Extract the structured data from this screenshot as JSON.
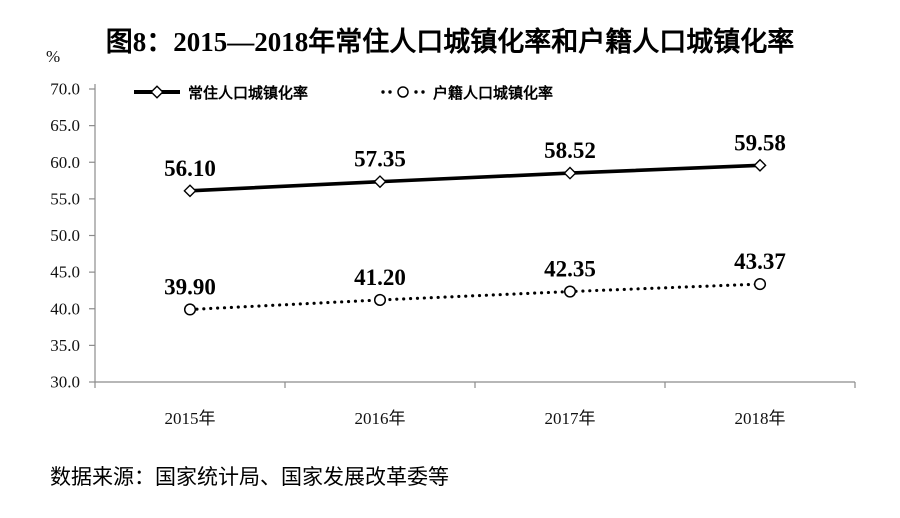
{
  "title": "图8：2015—2018年常住人口城镇化率和户籍人口城镇化率",
  "source_note": "数据来源：国家统计局、国家发展改革委等",
  "chart_data": {
    "type": "line",
    "title": "图8：2015—2018年常住人口城镇化率和户籍人口城镇化率",
    "categories": [
      "2015年",
      "2016年",
      "2017年",
      "2018年"
    ],
    "series": [
      {
        "name": "常住人口城镇化率",
        "values": [
          56.1,
          57.35,
          58.52,
          59.58
        ],
        "labels": [
          "56.10",
          "57.35",
          "58.52",
          "59.58"
        ],
        "line_style": "solid",
        "marker": "diamond",
        "color": "#000000"
      },
      {
        "name": "户籍人口城镇化率",
        "values": [
          39.9,
          41.2,
          42.35,
          43.37
        ],
        "labels": [
          "39.90",
          "41.20",
          "42.35",
          "43.37"
        ],
        "line_style": "dotted",
        "marker": "circle",
        "color": "#000000"
      }
    ],
    "xlabel": "",
    "ylabel": "%",
    "ylim": [
      30.0,
      70.0
    ],
    "ytick_step": 5.0,
    "ytick_labels": [
      "30.0",
      "35.0",
      "40.0",
      "45.0",
      "50.0",
      "55.0",
      "60.0",
      "65.0",
      "70.0"
    ],
    "grid": false,
    "legend_position": "top",
    "axis_color": "#8c8c8c",
    "line_color": "#000000"
  }
}
